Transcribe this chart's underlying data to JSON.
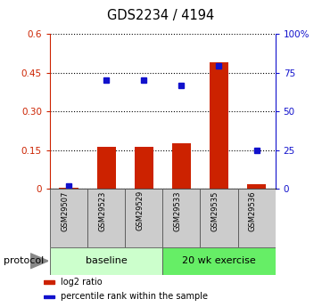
{
  "title": "GDS2234 / 4194",
  "samples": [
    "GSM29507",
    "GSM29523",
    "GSM29529",
    "GSM29533",
    "GSM29535",
    "GSM29536"
  ],
  "log2_ratio": [
    0.003,
    0.163,
    0.162,
    0.175,
    0.49,
    0.018
  ],
  "percentile_rank_pct": [
    2.0,
    70.0,
    70.0,
    66.5,
    79.5,
    25.0
  ],
  "ylim_left": [
    0,
    0.6
  ],
  "ylim_right": [
    0,
    100
  ],
  "yticks_left": [
    0,
    0.15,
    0.3,
    0.45,
    0.6
  ],
  "yticks_left_labels": [
    "0",
    "0.15",
    "0.30",
    "0.45",
    "0.6"
  ],
  "yticks_right": [
    0,
    25,
    50,
    75,
    100
  ],
  "yticks_right_labels": [
    "0",
    "25",
    "50",
    "75",
    "100%"
  ],
  "bar_color": "#cc2200",
  "dot_color": "#1111cc",
  "bg_color": "#ffffff",
  "protocol_groups": [
    {
      "label": "baseline",
      "start": 0,
      "end": 3,
      "color": "#ccffcc"
    },
    {
      "label": "20 wk exercise",
      "start": 3,
      "end": 6,
      "color": "#66ee66"
    }
  ],
  "protocol_label": "protocol",
  "legend": [
    {
      "label": "log2 ratio",
      "color": "#cc2200"
    },
    {
      "label": "percentile rank within the sample",
      "color": "#1111cc"
    }
  ],
  "left_axis_color": "#cc2200",
  "right_axis_color": "#1111cc",
  "sample_cell_color": "#cccccc",
  "bar_width": 0.5
}
